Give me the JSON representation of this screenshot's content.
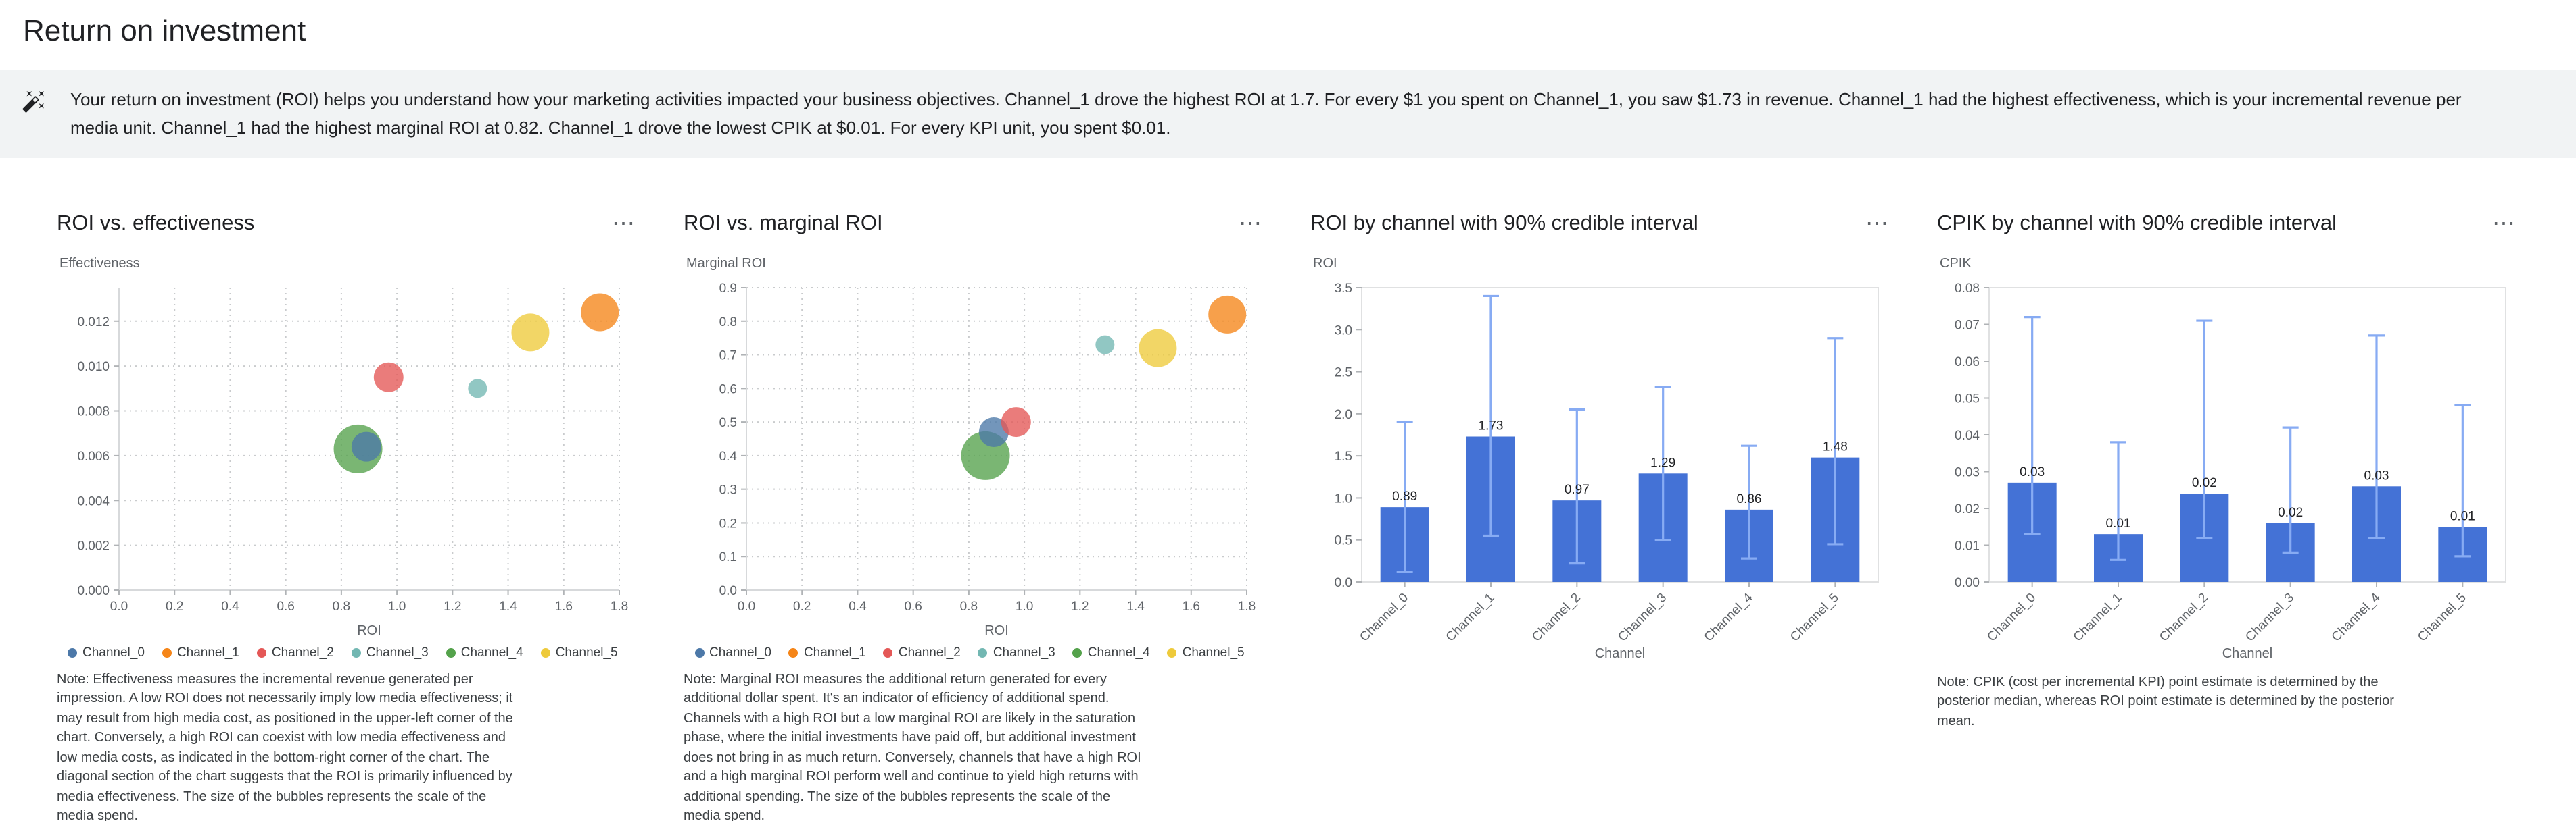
{
  "page": {
    "title": "Return on investment"
  },
  "ui": {
    "more_options_icon": "⋯"
  },
  "insight": {
    "text": "Your return on investment (ROI) helps you understand how your marketing activities impacted your business objectives. Channel_1 drove the highest ROI at 1.7. For every $1 you spent on Channel_1, you saw $1.73 in revenue. Channel_1 had the highest effectiveness, which is your incremental revenue per media unit. Channel_1 had the highest marginal ROI at 0.82. Channel_1 drove the lowest CPIK at $0.01. For every KPI unit, you spent $0.01."
  },
  "channels": [
    "Channel_0",
    "Channel_1",
    "Channel_2",
    "Channel_3",
    "Channel_4",
    "Channel_5"
  ],
  "channel_colors": [
    "#4c78a8",
    "#f58518",
    "#e45756",
    "#72b7b2",
    "#54a24b",
    "#eeca3b"
  ],
  "bar_color": "#4472d6",
  "error_color": "#87abf3",
  "chart_data": [
    {
      "type": "scatter",
      "title": "ROI vs. effectiveness",
      "xlabel": "ROI",
      "ylabel": "Effectiveness",
      "xlim": [
        0,
        1.8
      ],
      "x_tick_step": 0.2,
      "x_decimals": 1,
      "ylim": [
        0,
        0.0135
      ],
      "y_tick_step": 0.002,
      "y_tick_max": 0.012,
      "y_decimals": 3,
      "legend_position": "bottom",
      "grid": true,
      "points": [
        {
          "channel": "Channel_0",
          "x": 0.89,
          "y": 0.0064,
          "r": 11
        },
        {
          "channel": "Channel_1",
          "x": 1.73,
          "y": 0.0124,
          "r": 14
        },
        {
          "channel": "Channel_2",
          "x": 0.97,
          "y": 0.0095,
          "r": 11
        },
        {
          "channel": "Channel_3",
          "x": 1.29,
          "y": 0.009,
          "r": 7
        },
        {
          "channel": "Channel_4",
          "x": 0.86,
          "y": 0.0063,
          "r": 18
        },
        {
          "channel": "Channel_5",
          "x": 1.48,
          "y": 0.0115,
          "r": 14
        }
      ],
      "note": "Note: Effectiveness measures the incremental revenue generated per impression. A low ROI does not necessarily imply low media effectiveness; it may result from high media cost, as positioned in the upper-left corner of the chart. Conversely, a high ROI can coexist with low media effectiveness and low media costs, as indicated in the bottom-right corner of the chart. The diagonal section of the chart suggests that the ROI is primarily influenced by media effectiveness. The size of the bubbles represents the scale of the media spend."
    },
    {
      "type": "scatter",
      "title": "ROI vs. marginal ROI",
      "xlabel": "ROI",
      "ylabel": "Marginal ROI",
      "xlim": [
        0,
        1.8
      ],
      "x_tick_step": 0.2,
      "x_decimals": 1,
      "ylim": [
        0,
        0.9
      ],
      "y_tick_step": 0.1,
      "y_decimals": 1,
      "legend_position": "bottom",
      "grid": true,
      "points": [
        {
          "channel": "Channel_0",
          "x": 0.89,
          "y": 0.47,
          "r": 11
        },
        {
          "channel": "Channel_1",
          "x": 1.73,
          "y": 0.82,
          "r": 14
        },
        {
          "channel": "Channel_2",
          "x": 0.97,
          "y": 0.5,
          "r": 11
        },
        {
          "channel": "Channel_3",
          "x": 1.29,
          "y": 0.73,
          "r": 7
        },
        {
          "channel": "Channel_4",
          "x": 0.86,
          "y": 0.4,
          "r": 18
        },
        {
          "channel": "Channel_5",
          "x": 1.48,
          "y": 0.72,
          "r": 14
        }
      ],
      "note": "Note: Marginal ROI measures the additional return generated for every additional dollar spent. It's an indicator of efficiency of additional spend. Channels with a high ROI but a low marginal ROI are likely in the saturation phase, where the initial investments have paid off, but additional investment does not bring in as much return. Conversely, channels that have a high ROI and a high marginal ROI perform well and continue to yield high returns with additional spending. The size of the bubbles represents the scale of the media spend."
    },
    {
      "type": "bar",
      "title": "ROI by channel with 90% credible interval",
      "xlabel": "Channel",
      "ylabel": "ROI",
      "ylim": [
        0,
        3.5
      ],
      "y_tick_step": 0.5,
      "y_decimals": 1,
      "grid": false,
      "categories": [
        "Channel_0",
        "Channel_1",
        "Channel_2",
        "Channel_3",
        "Channel_4",
        "Channel_5"
      ],
      "values": [
        0.89,
        1.73,
        0.97,
        1.29,
        0.86,
        1.48
      ],
      "labels": [
        "0.89",
        "1.73",
        "0.97",
        "1.29",
        "0.86",
        "1.48"
      ],
      "ci_low": [
        0.12,
        0.55,
        0.22,
        0.5,
        0.28,
        0.45
      ],
      "ci_high": [
        1.9,
        3.4,
        2.05,
        2.32,
        1.62,
        2.9
      ]
    },
    {
      "type": "bar",
      "title": "CPIK by channel with 90% credible interval",
      "xlabel": "Channel",
      "ylabel": "CPIK",
      "ylim": [
        0,
        0.08
      ],
      "y_tick_step": 0.01,
      "y_decimals": 2,
      "grid": false,
      "categories": [
        "Channel_0",
        "Channel_1",
        "Channel_2",
        "Channel_3",
        "Channel_4",
        "Channel_5"
      ],
      "values": [
        0.027,
        0.013,
        0.024,
        0.016,
        0.026,
        0.015
      ],
      "labels": [
        "0.03",
        "0.01",
        "0.02",
        "0.02",
        "0.03",
        "0.01"
      ],
      "ci_low": [
        0.013,
        0.006,
        0.012,
        0.008,
        0.012,
        0.007
      ],
      "ci_high": [
        0.072,
        0.038,
        0.071,
        0.042,
        0.067,
        0.048
      ],
      "note": "Note: CPIK (cost per incremental KPI) point estimate is determined by the posterior median, whereas ROI point estimate is determined by the posterior mean."
    }
  ]
}
